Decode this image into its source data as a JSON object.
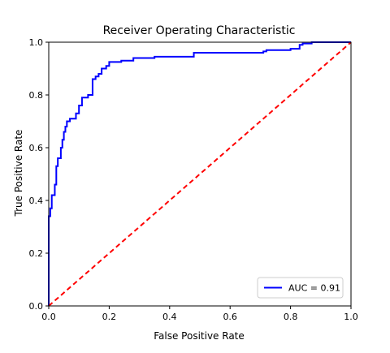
{
  "chart_data": {
    "type": "line",
    "title": "Receiver Operating Characteristic",
    "xlabel": "False Positive Rate",
    "ylabel": "True Positive Rate",
    "xlim": [
      0.0,
      1.0
    ],
    "ylim": [
      0.0,
      1.0
    ],
    "x_ticks": [
      "0.0",
      "0.2",
      "0.4",
      "0.6",
      "0.8",
      "1.0"
    ],
    "y_ticks": [
      "0.0",
      "0.2",
      "0.4",
      "0.6",
      "0.8",
      "1.0"
    ],
    "grid": false,
    "legend_position": "lower right",
    "series": [
      {
        "name": "AUC = 0.91",
        "color": "#0000ff",
        "style": "solid",
        "step": true,
        "x": [
          0.0,
          0.0,
          0.005,
          0.005,
          0.01,
          0.01,
          0.02,
          0.02,
          0.025,
          0.025,
          0.03,
          0.03,
          0.04,
          0.04,
          0.045,
          0.045,
          0.05,
          0.05,
          0.055,
          0.055,
          0.06,
          0.06,
          0.07,
          0.07,
          0.09,
          0.09,
          0.1,
          0.1,
          0.11,
          0.11,
          0.13,
          0.13,
          0.145,
          0.145,
          0.155,
          0.155,
          0.165,
          0.165,
          0.175,
          0.175,
          0.19,
          0.19,
          0.2,
          0.2,
          0.24,
          0.24,
          0.28,
          0.28,
          0.35,
          0.35,
          0.48,
          0.48,
          0.53,
          0.53,
          0.71,
          0.71,
          0.72,
          0.72,
          0.8,
          0.8,
          0.83,
          0.83,
          0.84,
          0.84,
          0.87,
          0.87,
          1.0
        ],
        "y": [
          0.0,
          0.34,
          0.34,
          0.37,
          0.37,
          0.42,
          0.42,
          0.46,
          0.46,
          0.53,
          0.53,
          0.56,
          0.56,
          0.6,
          0.6,
          0.63,
          0.63,
          0.66,
          0.66,
          0.68,
          0.68,
          0.7,
          0.7,
          0.71,
          0.71,
          0.73,
          0.73,
          0.76,
          0.76,
          0.79,
          0.79,
          0.8,
          0.8,
          0.86,
          0.86,
          0.87,
          0.87,
          0.88,
          0.88,
          0.9,
          0.9,
          0.91,
          0.91,
          0.925,
          0.925,
          0.93,
          0.93,
          0.94,
          0.94,
          0.945,
          0.945,
          0.96,
          0.96,
          0.96,
          0.96,
          0.965,
          0.965,
          0.97,
          0.97,
          0.975,
          0.975,
          0.99,
          0.99,
          0.995,
          0.995,
          1.0,
          1.0
        ]
      },
      {
        "name": "",
        "color": "#ff0000",
        "style": "dashed",
        "x": [
          0.0,
          1.0
        ],
        "y": [
          0.0,
          1.0
        ]
      }
    ]
  }
}
